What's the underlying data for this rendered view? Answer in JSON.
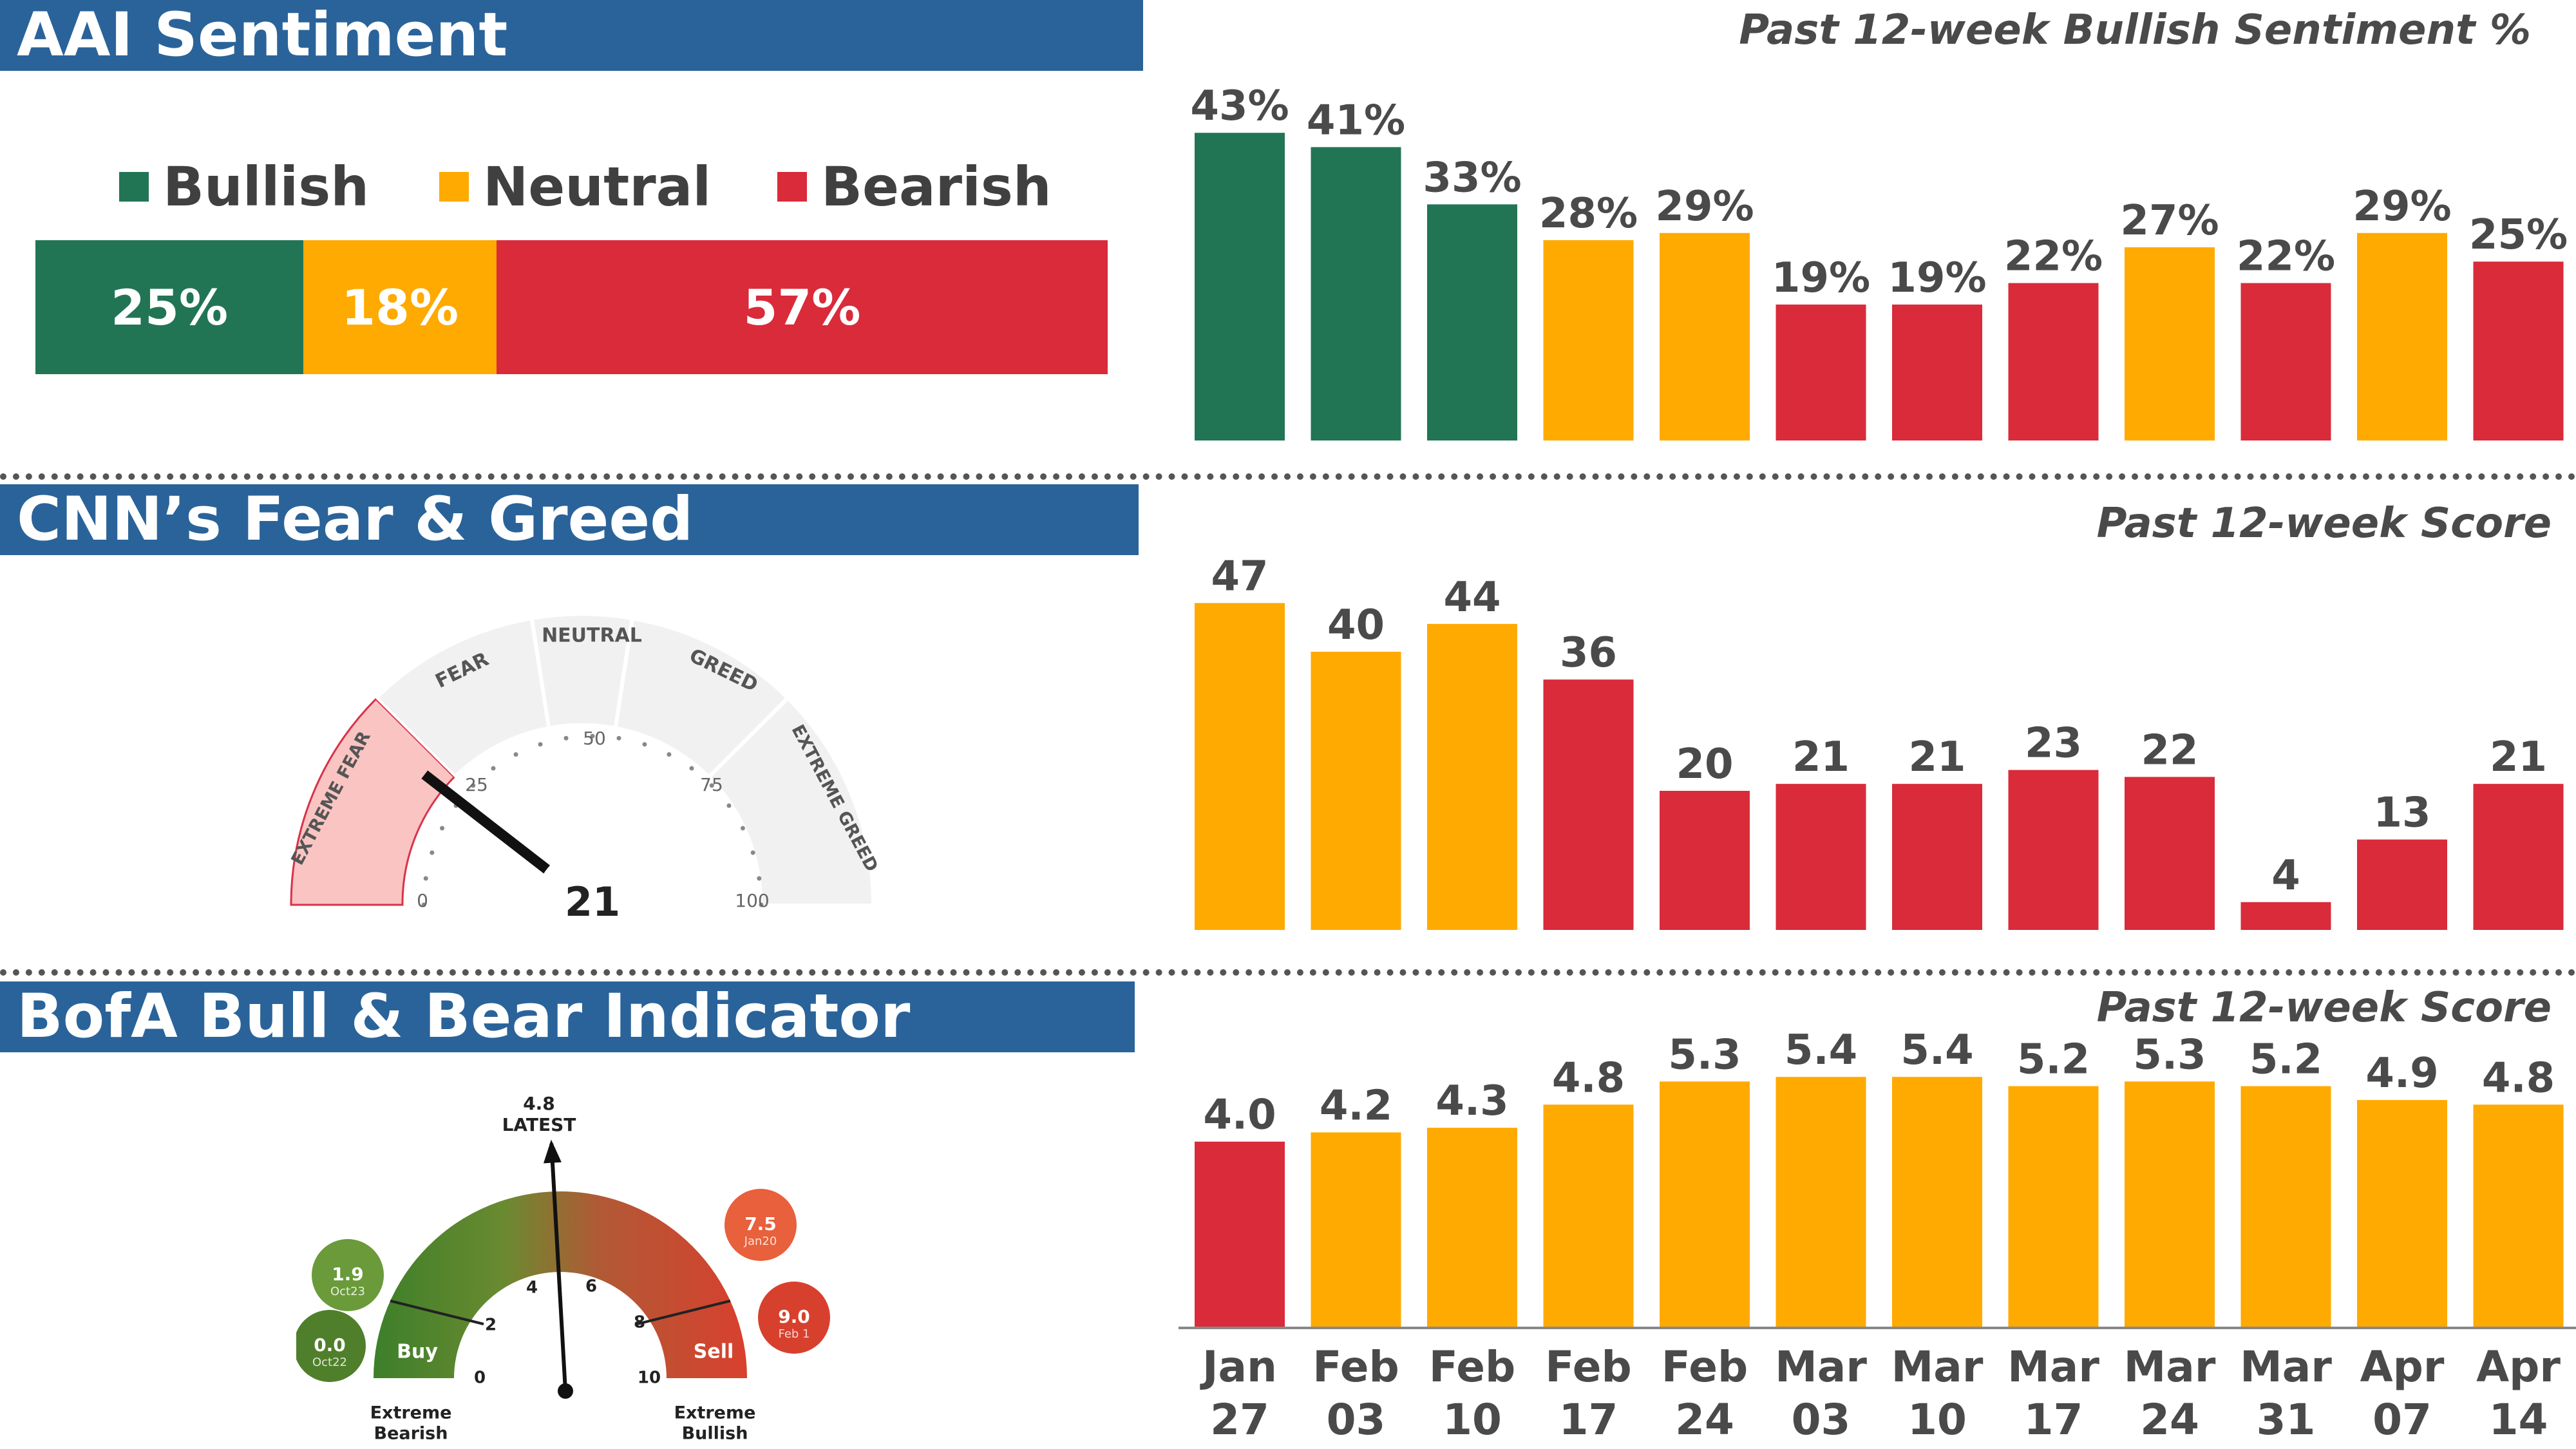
{
  "aai": {
    "header": "AAI Sentiment",
    "chart_title": "Past 12-week Bullish Sentiment %",
    "legend": [
      {
        "label": "Bullish",
        "color": "#217555"
      },
      {
        "label": "Neutral",
        "color": "#ffaa00"
      },
      {
        "label": "Bearish",
        "color": "#d92b3a"
      }
    ],
    "stack": [
      {
        "label": "25%",
        "value": 25,
        "color": "#217555"
      },
      {
        "label": "18%",
        "value": 18,
        "color": "#ffaa00"
      },
      {
        "label": "57%",
        "value": 57,
        "color": "#d92b3a"
      }
    ]
  },
  "cnn": {
    "header": "CNN’s Fear & Greed",
    "chart_title": "Past 12-week Score",
    "gauge": {
      "zones": [
        "EXTREME FEAR",
        "FEAR",
        "NEUTRAL",
        "GREED",
        "EXTREME GREED"
      ],
      "ticks": [
        "0",
        "25",
        "50",
        "75",
        "100"
      ],
      "value": 21,
      "value_label": "21"
    }
  },
  "bofa": {
    "header": "BofA Bull & Bear Indicator",
    "chart_title": "Past 12-week Score",
    "gauge": {
      "latest_value": "4.8",
      "latest_label": "LATEST",
      "value": 4.8,
      "ticks": [
        "0",
        "2",
        "4",
        "6",
        "8",
        "10"
      ],
      "buy_label": "Buy",
      "sell_label": "Sell",
      "left_label_1": "Extreme",
      "left_label_2": "Bearish",
      "right_label_1": "Extreme",
      "right_label_2": "Bullish",
      "bubbles": [
        {
          "value": "1.9",
          "date": "Oct23",
          "color": "#6a9a3a"
        },
        {
          "value": "0.0",
          "date": "Oct22",
          "color": "#4f7f2a"
        },
        {
          "value": "7.5",
          "date": "Jan20",
          "color": "#e8603c"
        },
        {
          "value": "9.0",
          "date": "Feb 1",
          "color": "#d8402e"
        }
      ]
    }
  },
  "dates": [
    [
      "Jan",
      "27"
    ],
    [
      "Feb",
      "03"
    ],
    [
      "Feb",
      "10"
    ],
    [
      "Feb",
      "17"
    ],
    [
      "Feb",
      "24"
    ],
    [
      "Mar",
      "03"
    ],
    [
      "Mar",
      "10"
    ],
    [
      "Mar",
      "17"
    ],
    [
      "Mar",
      "24"
    ],
    [
      "Mar",
      "31"
    ],
    [
      "Apr",
      "07"
    ],
    [
      "Apr",
      "14"
    ]
  ],
  "colors": {
    "green": "#217555",
    "orange": "#ffaa00",
    "red": "#d92b3a"
  },
  "chart_data": [
    {
      "type": "bar",
      "title": "Past 12-week Bullish Sentiment %",
      "categories": [
        "Jan 27",
        "Feb 03",
        "Feb 10",
        "Feb 17",
        "Feb 24",
        "Mar 03",
        "Mar 10",
        "Mar 17",
        "Mar 24",
        "Mar 31",
        "Apr 07",
        "Apr 14"
      ],
      "values": [
        43,
        41,
        33,
        28,
        29,
        19,
        19,
        22,
        27,
        22,
        29,
        25
      ],
      "labels": [
        "43%",
        "41%",
        "33%",
        "28%",
        "29%",
        "19%",
        "19%",
        "22%",
        "27%",
        "22%",
        "29%",
        "25%"
      ],
      "bar_colors": [
        "green",
        "green",
        "green",
        "orange",
        "orange",
        "red",
        "red",
        "red",
        "orange",
        "red",
        "orange",
        "red"
      ],
      "ylim": [
        0,
        45
      ]
    },
    {
      "type": "bar",
      "title": "Past 12-week Score",
      "categories": [
        "Jan 27",
        "Feb 03",
        "Feb 10",
        "Feb 17",
        "Feb 24",
        "Mar 03",
        "Mar 10",
        "Mar 17",
        "Mar 24",
        "Mar 31",
        "Apr 07",
        "Apr 14"
      ],
      "values": [
        47,
        40,
        44,
        36,
        20,
        21,
        21,
        23,
        22,
        4,
        13,
        21
      ],
      "labels": [
        "47",
        "40",
        "44",
        "36",
        "20",
        "21",
        "21",
        "23",
        "22",
        "4",
        "13",
        "21"
      ],
      "bar_colors": [
        "orange",
        "orange",
        "orange",
        "red",
        "red",
        "red",
        "red",
        "red",
        "red",
        "red",
        "red",
        "red"
      ],
      "ylim": [
        0,
        50
      ]
    },
    {
      "type": "bar",
      "title": "Past 12-week Score",
      "categories": [
        "Jan 27",
        "Feb 03",
        "Feb 10",
        "Feb 17",
        "Feb 24",
        "Mar 03",
        "Mar 10",
        "Mar 17",
        "Mar 24",
        "Mar 31",
        "Apr 07",
        "Apr 14"
      ],
      "values": [
        4.0,
        4.2,
        4.3,
        4.8,
        5.3,
        5.4,
        5.4,
        5.2,
        5.3,
        5.2,
        4.9,
        4.8
      ],
      "labels": [
        "4.0",
        "4.2",
        "4.3",
        "4.8",
        "5.3",
        "5.4",
        "5.4",
        "5.2",
        "5.3",
        "5.2",
        "4.9",
        "4.8"
      ],
      "bar_colors": [
        "red",
        "orange",
        "orange",
        "orange",
        "orange",
        "orange",
        "orange",
        "orange",
        "orange",
        "orange",
        "orange",
        "orange"
      ],
      "ylim": [
        0,
        5.5
      ]
    }
  ]
}
